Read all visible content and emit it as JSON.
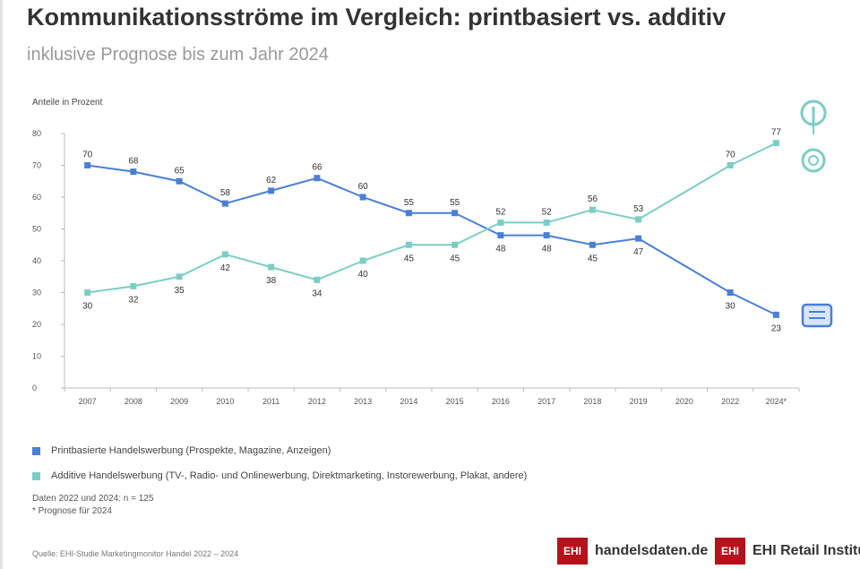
{
  "header": {
    "title": "Kommunikationsströme im Vergleich: printbasiert vs. additiv",
    "subtitle": "inklusive Prognose bis zum Jahr 2024"
  },
  "chart_data": {
    "type": "line",
    "ylabel": "Anteile in Prozent",
    "ylim": [
      0,
      80
    ],
    "yticks": [
      0,
      10,
      20,
      30,
      40,
      50,
      60,
      70,
      80
    ],
    "categories": [
      "2007",
      "2008",
      "2009",
      "2010",
      "2011",
      "2012",
      "2013",
      "2014",
      "2015",
      "2016",
      "2017",
      "2018",
      "2019",
      "2020",
      "2022",
      "2024*"
    ],
    "grid": false,
    "series": [
      {
        "name": "Printbasierte Handelswerbung (Prospekte, Magazine, Anzeigen)",
        "color": "#4a7fd4",
        "values": [
          70,
          68,
          65,
          58,
          62,
          66,
          60,
          55,
          55,
          48,
          48,
          45,
          47,
          null,
          30,
          23
        ],
        "labels": [
          "70",
          "68",
          "65",
          "58",
          "62",
          "66",
          "60",
          "55",
          "55",
          "48",
          "48",
          "45",
          "47",
          "",
          "30",
          "23"
        ]
      },
      {
        "name": "Additive Handelswerbung (TV-, Radio- und Onlinewerbung, Direktmarketing, Instorewerbung, Plakat, andere)",
        "color": "#7ccdc4",
        "values": [
          30,
          32,
          35,
          42,
          38,
          34,
          40,
          45,
          45,
          52,
          52,
          56,
          53,
          null,
          70,
          77
        ],
        "labels": [
          "30",
          "32",
          "35",
          "42",
          "38",
          "34",
          "40",
          "45",
          "45",
          "52",
          "52",
          "56",
          "53",
          "",
          "70",
          "77"
        ]
      }
    ]
  },
  "legend": {
    "print": "Printbasierte Handelswerbung (Prospekte, Magazine, Anzeigen)",
    "additive": "Additive Handelswerbung (TV-, Radio- und Onlinewerbung, Direktmarketing, Instorewerbung, Plakat, andere)"
  },
  "notes": {
    "line1": "Daten 2022 und 2024: n = 125",
    "line2": "* Prognose für 2024"
  },
  "source": "Quelle: EHI-Studie Marketingmonitor Handel 2022 – 2024",
  "brands": {
    "left_logo": "EHI",
    "left_name": "handelsdaten.de",
    "right_logo": "EHI",
    "right_name": "EHI Retail Institute"
  },
  "icons": {
    "lamp": "lamp-icon",
    "instagram": "instagram-icon",
    "newspaper": "newspaper-icon"
  }
}
